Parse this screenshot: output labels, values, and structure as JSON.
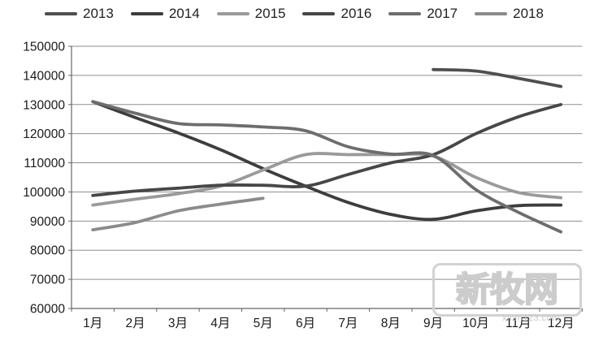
{
  "watermark": {
    "logo_text": "新牧网",
    "url_text": "xinm123.com"
  },
  "chart_data": {
    "type": "line",
    "title": "",
    "xlabel": "",
    "ylabel": "",
    "categories": [
      "1月",
      "2月",
      "3月",
      "4月",
      "5月",
      "6月",
      "7月",
      "8月",
      "9月",
      "10月",
      "11月",
      "12月"
    ],
    "series": [
      {
        "name": "2013",
        "color": "#4f4f4f",
        "values": [
          null,
          null,
          null,
          null,
          null,
          null,
          null,
          null,
          142000,
          141500,
          139000,
          136200
        ]
      },
      {
        "name": "2014",
        "color": "#3d3d3d",
        "values": [
          131000,
          125500,
          120300,
          114500,
          108000,
          102000,
          96400,
          92300,
          90600,
          93500,
          95300,
          95500
        ]
      },
      {
        "name": "2015",
        "color": "#9a9a9a",
        "values": [
          95500,
          97500,
          99400,
          102000,
          107500,
          112800,
          112800,
          112800,
          112300,
          105000,
          99800,
          98000
        ]
      },
      {
        "name": "2016",
        "color": "#474747",
        "values": [
          98800,
          100300,
          101300,
          102300,
          102300,
          102000,
          106000,
          110000,
          112800,
          120000,
          125800,
          130000
        ]
      },
      {
        "name": "2017",
        "color": "#6d6d6d",
        "values": [
          131000,
          127000,
          123500,
          123000,
          122300,
          121000,
          115500,
          113000,
          112500,
          100800,
          93000,
          86300
        ]
      },
      {
        "name": "2018",
        "color": "#8b8b8b",
        "values": [
          87000,
          89500,
          93500,
          95800,
          97800,
          null,
          null,
          null,
          null,
          null,
          null,
          null
        ]
      }
    ],
    "ylim": [
      60000,
      150000
    ],
    "ytick_step": 10000,
    "grid": true,
    "legend_position": "top"
  }
}
